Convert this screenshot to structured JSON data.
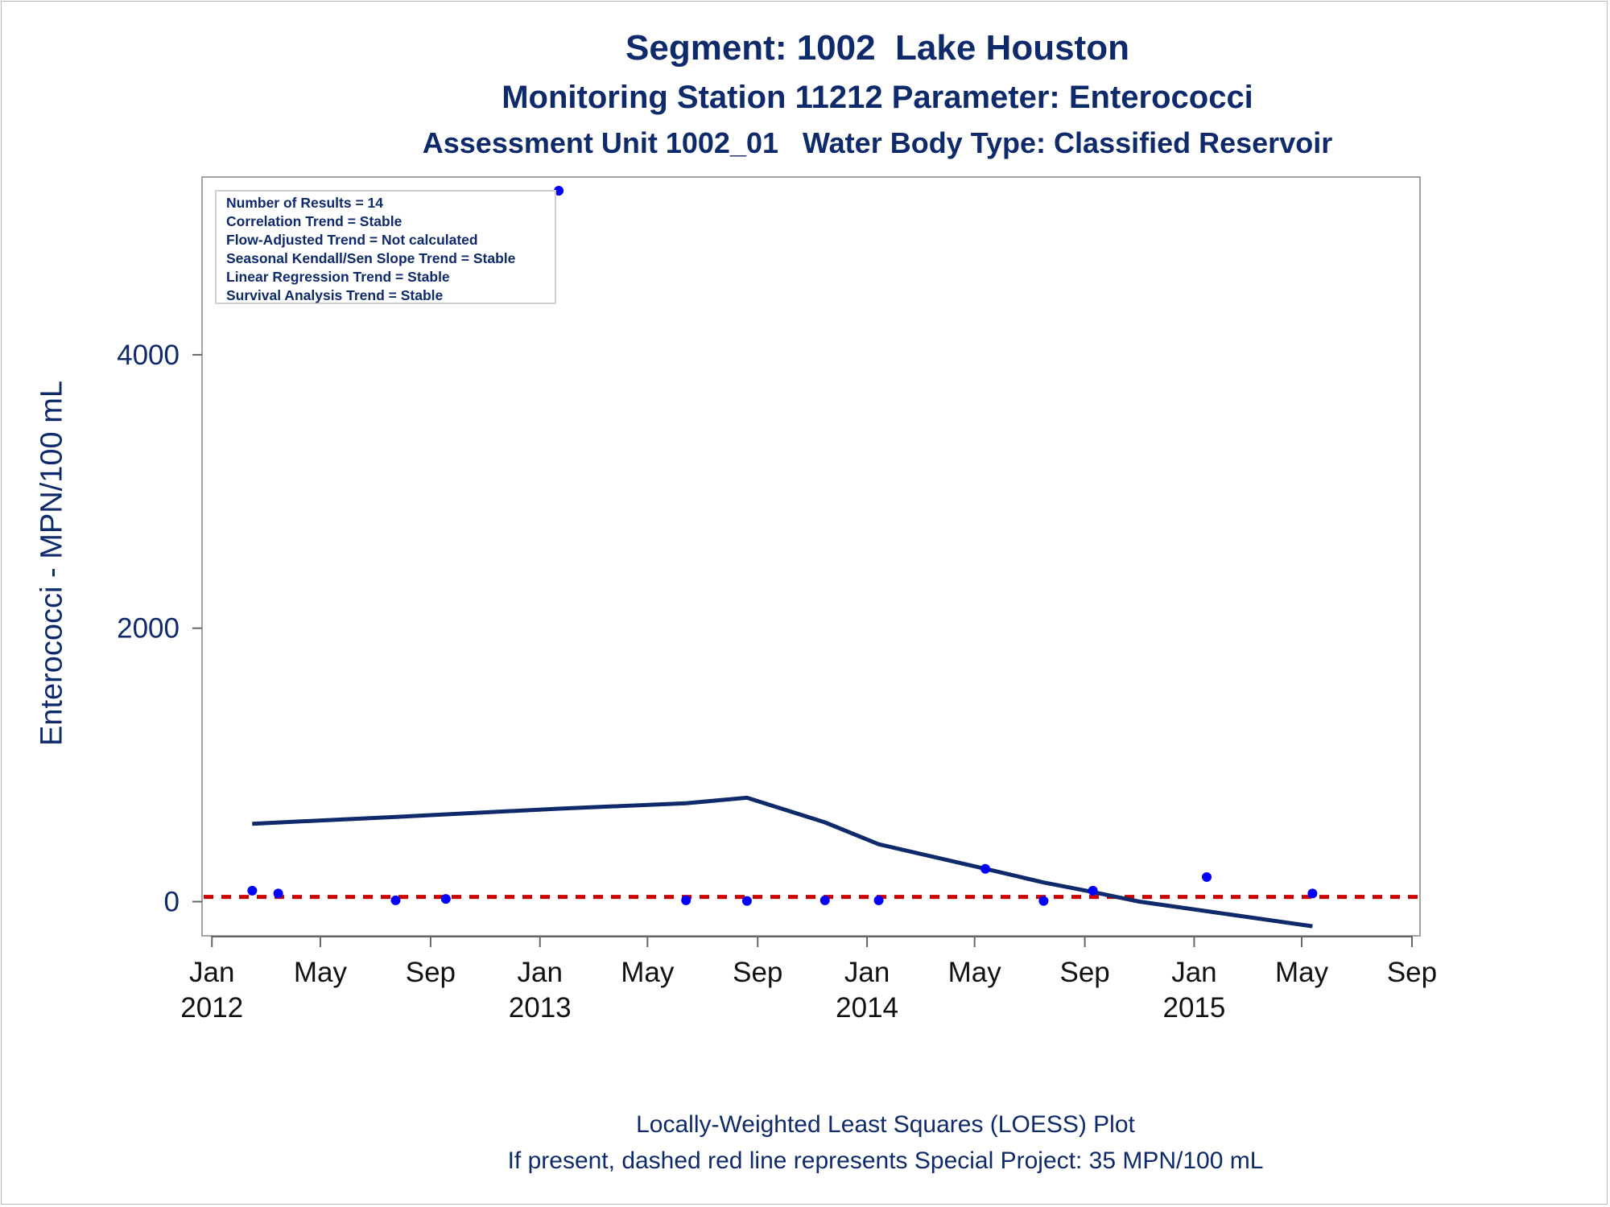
{
  "chart_data": {
    "type": "scatter",
    "title": "Segment: 1002  Lake Houston",
    "subtitle_1": "Monitoring Station 11212 Parameter: Enterococci",
    "subtitle_2": "Assessment Unit 1002_01   Water Body Type: Classified Reservoir",
    "ylabel": "Enterococci - MPN/100 mL",
    "xlabel": "",
    "ylim": [
      -250,
      5300
    ],
    "xlim": [
      "2011-12-21",
      "2015-09-10"
    ],
    "x_ticks": [
      {
        "date": "2012-01-01",
        "label": "Jan",
        "year": "2012"
      },
      {
        "date": "2012-05-01",
        "label": "May",
        "year": ""
      },
      {
        "date": "2012-09-01",
        "label": "Sep",
        "year": ""
      },
      {
        "date": "2013-01-01",
        "label": "Jan",
        "year": "2013"
      },
      {
        "date": "2013-05-01",
        "label": "May",
        "year": ""
      },
      {
        "date": "2013-09-01",
        "label": "Sep",
        "year": ""
      },
      {
        "date": "2014-01-01",
        "label": "Jan",
        "year": "2014"
      },
      {
        "date": "2014-05-01",
        "label": "May",
        "year": ""
      },
      {
        "date": "2014-09-01",
        "label": "Sep",
        "year": ""
      },
      {
        "date": "2015-01-01",
        "label": "Jan",
        "year": "2015"
      },
      {
        "date": "2015-05-01",
        "label": "May",
        "year": ""
      },
      {
        "date": "2015-09-01",
        "label": "Sep",
        "year": ""
      }
    ],
    "y_ticks": [
      0,
      2000,
      4000
    ],
    "grid": false,
    "legend_placement": "top-left",
    "legend_lines": [
      "Number of Results = 14",
      "Correlation Trend = Stable",
      "Flow-Adjusted Trend = Not calculated",
      "Seasonal Kendall/Sen Slope Trend = Stable",
      "Linear Regression Trend = Stable",
      "Survival Analysis Trend = Stable"
    ],
    "series": [
      {
        "type": "scatter",
        "color": "#0000ff",
        "points": [
          {
            "x": "2012-02-15",
            "y": 80
          },
          {
            "x": "2012-03-15",
            "y": 60
          },
          {
            "x": "2012-07-24",
            "y": 10
          },
          {
            "x": "2012-09-18",
            "y": 20
          },
          {
            "x": "2013-01-22",
            "y": 5200
          },
          {
            "x": "2013-06-13",
            "y": 10
          },
          {
            "x": "2013-08-20",
            "y": 5
          },
          {
            "x": "2013-11-15",
            "y": 10
          },
          {
            "x": "2014-01-14",
            "y": 10
          },
          {
            "x": "2014-05-13",
            "y": 240
          },
          {
            "x": "2014-07-17",
            "y": 5
          },
          {
            "x": "2014-09-10",
            "y": 80
          },
          {
            "x": "2015-01-15",
            "y": 180
          },
          {
            "x": "2015-05-13",
            "y": 60
          }
        ]
      },
      {
        "type": "line",
        "color": "#0e2a6b",
        "points": [
          {
            "x": "2012-02-15",
            "y": 570
          },
          {
            "x": "2012-07-24",
            "y": 620
          },
          {
            "x": "2013-01-22",
            "y": 680
          },
          {
            "x": "2013-06-13",
            "y": 720
          },
          {
            "x": "2013-08-20",
            "y": 760
          },
          {
            "x": "2013-11-15",
            "y": 580
          },
          {
            "x": "2014-01-14",
            "y": 420
          },
          {
            "x": "2014-05-13",
            "y": 240
          },
          {
            "x": "2014-07-17",
            "y": 140
          },
          {
            "x": "2014-09-10",
            "y": 70
          },
          {
            "x": "2014-11-01",
            "y": 0
          },
          {
            "x": "2015-01-15",
            "y": -70
          },
          {
            "x": "2015-05-13",
            "y": -180
          }
        ]
      }
    ],
    "reference_line": {
      "y": 35,
      "color": "#cc0000",
      "style": "dashed"
    },
    "footnote_1": "Locally-Weighted Least Squares (LOESS) Plot",
    "footnote_2": "If present, dashed red line represents Special Project: 35 MPN/100 mL"
  }
}
